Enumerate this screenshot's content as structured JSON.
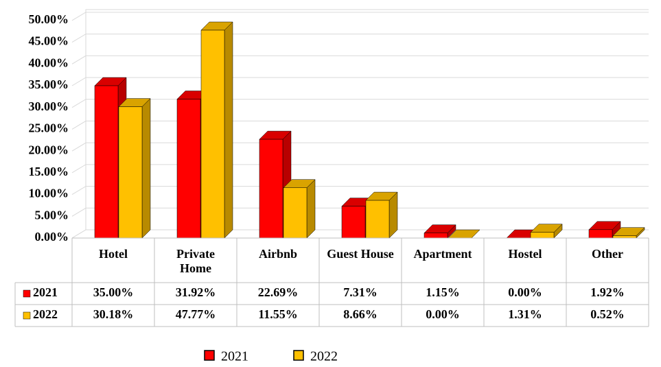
{
  "chart_data": {
    "type": "bar3d",
    "categories": [
      "Hotel",
      "Private Home",
      "Airbnb",
      "Guest House",
      "Apartment",
      "Hostel",
      "Other"
    ],
    "series": [
      {
        "name": "2021",
        "color": "#ff0000",
        "values": [
          35.0,
          31.92,
          22.69,
          7.31,
          1.15,
          0.0,
          1.92
        ],
        "value_labels": [
          "35.00%",
          "31.92%",
          "22.69%",
          "7.31%",
          "1.15%",
          "0.00%",
          "1.92%"
        ]
      },
      {
        "name": "2022",
        "color": "#ffc000",
        "values": [
          30.18,
          47.77,
          11.55,
          8.66,
          0.0,
          1.31,
          0.52
        ],
        "value_labels": [
          "30.18%",
          "47.77%",
          "11.55%",
          "8.66%",
          "0.00%",
          "1.31%",
          "0.52%"
        ]
      }
    ],
    "ylim": [
      0,
      52.5
    ],
    "yticks": [
      {
        "value": 0,
        "label": "0.00%"
      },
      {
        "value": 5,
        "label": "5.00%"
      },
      {
        "value": 10,
        "label": "10.00%"
      },
      {
        "value": 15,
        "label": "15.00%"
      },
      {
        "value": 20,
        "label": "20.00%"
      },
      {
        "value": 25,
        "label": "25.00%"
      },
      {
        "value": 30,
        "label": "30.00%"
      },
      {
        "value": 35,
        "label": "35.00%"
      },
      {
        "value": 40,
        "label": "40.00%"
      },
      {
        "value": 45,
        "label": "45.00%"
      },
      {
        "value": 50,
        "label": "50.00%"
      }
    ],
    "grid": true,
    "legend": "bottom"
  }
}
